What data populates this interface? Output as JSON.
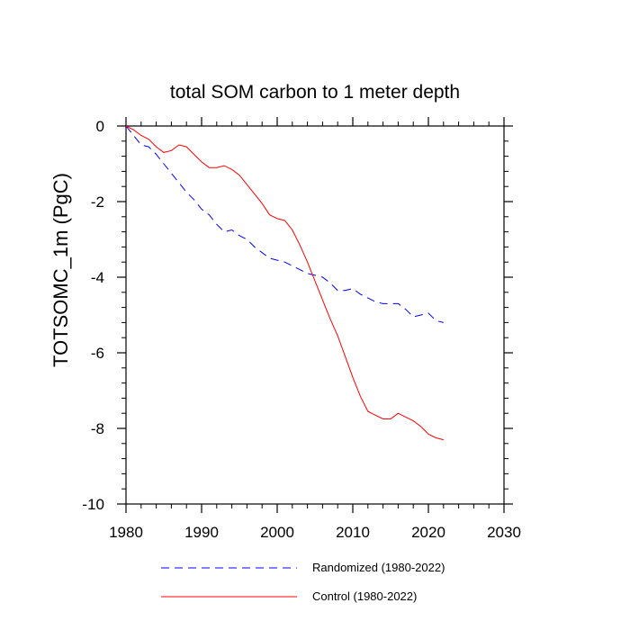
{
  "chart_data": {
    "type": "line",
    "title": "total SOM carbon to 1 meter depth",
    "xlabel": "",
    "ylabel": "TOTSOMC_1m  (PgC)",
    "xlim": [
      1980,
      2030
    ],
    "ylim": [
      -10,
      0
    ],
    "x_ticks": [
      1980,
      1990,
      2000,
      2010,
      2020,
      2030
    ],
    "y_ticks": [
      0,
      -2,
      -4,
      -6,
      -8,
      -10
    ],
    "x_tick_labels": [
      "1980",
      "1990",
      "2000",
      "2010",
      "2020",
      "2030"
    ],
    "y_tick_labels": [
      "0",
      "-2",
      "-4",
      "-6",
      "-8",
      "-10"
    ],
    "x_minor_step": 2,
    "y_minor_step": 0.4,
    "series": [
      {
        "name": "Randomized (1980-2022)",
        "color": "#0000ff",
        "style": "dashed",
        "x": [
          1980,
          1981,
          1982,
          1983,
          1984,
          1985,
          1986,
          1987,
          1988,
          1989,
          1990,
          1991,
          1992,
          1993,
          1994,
          1995,
          1996,
          1997,
          1998,
          1999,
          2000,
          2001,
          2002,
          2003,
          2004,
          2005,
          2006,
          2007,
          2008,
          2009,
          2010,
          2011,
          2012,
          2013,
          2014,
          2015,
          2016,
          2017,
          2018,
          2019,
          2020,
          2021,
          2022
        ],
        "values": [
          0.0,
          -0.25,
          -0.5,
          -0.55,
          -0.75,
          -1.0,
          -1.25,
          -1.5,
          -1.75,
          -1.95,
          -2.2,
          -2.35,
          -2.6,
          -2.8,
          -2.75,
          -2.9,
          -3.0,
          -3.2,
          -3.35,
          -3.5,
          -3.55,
          -3.6,
          -3.7,
          -3.8,
          -3.9,
          -3.95,
          -4.0,
          -4.15,
          -4.35,
          -4.35,
          -4.3,
          -4.45,
          -4.55,
          -4.65,
          -4.7,
          -4.7,
          -4.7,
          -4.85,
          -5.05,
          -5.0,
          -4.95,
          -5.15,
          -5.2
        ]
      },
      {
        "name": "Control (1980-2022)",
        "color": "#ff0000",
        "style": "solid",
        "x": [
          1980,
          1981,
          1982,
          1983,
          1984,
          1985,
          1986,
          1987,
          1988,
          1989,
          1990,
          1991,
          1992,
          1993,
          1994,
          1995,
          1996,
          1997,
          1998,
          1999,
          2000,
          2001,
          2002,
          2003,
          2004,
          2005,
          2006,
          2007,
          2008,
          2009,
          2010,
          2011,
          2012,
          2013,
          2014,
          2015,
          2016,
          2017,
          2018,
          2019,
          2020,
          2021,
          2022
        ],
        "values": [
          0.0,
          -0.1,
          -0.25,
          -0.35,
          -0.55,
          -0.7,
          -0.65,
          -0.5,
          -0.55,
          -0.75,
          -0.95,
          -1.1,
          -1.1,
          -1.05,
          -1.15,
          -1.3,
          -1.55,
          -1.8,
          -2.05,
          -2.35,
          -2.45,
          -2.5,
          -2.75,
          -3.15,
          -3.6,
          -4.1,
          -4.6,
          -5.1,
          -5.55,
          -6.1,
          -6.65,
          -7.15,
          -7.55,
          -7.65,
          -7.75,
          -7.75,
          -7.6,
          -7.7,
          -7.8,
          -7.95,
          -8.15,
          -8.25,
          -8.3
        ]
      }
    ],
    "legend": {
      "placement": "bottom",
      "entries": [
        "Randomized (1980-2022)",
        "Control (1980-2022)"
      ]
    }
  }
}
